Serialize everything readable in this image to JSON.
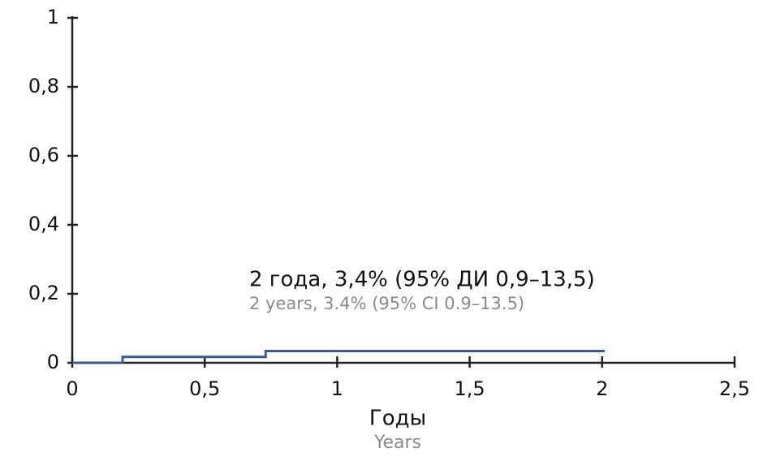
{
  "chart_data": {
    "type": "line",
    "step": "post",
    "x": [
      0,
      0.19,
      0.19,
      0.73,
      0.73,
      2.01
    ],
    "series": [
      {
        "color": "#3b5a8e",
        "values": [
          0,
          0,
          0.017,
          0.017,
          0.034,
          0.034
        ]
      }
    ],
    "xlim": [
      0,
      2.5
    ],
    "xticks": [
      0,
      {
        "value": 0.5,
        "label": "0,5"
      },
      1,
      {
        "value": 1.5,
        "label": "1,5"
      },
      2,
      {
        "value": 2.5,
        "label": "2,5"
      }
    ],
    "ylim": [
      0,
      1
    ],
    "yticks": [
      0,
      {
        "value": 0.2,
        "label": "0,2"
      },
      {
        "value": 0.4,
        "label": "0,4"
      },
      {
        "value": 0.6,
        "label": "0,6"
      },
      {
        "value": 0.8,
        "label": "0,8"
      },
      1
    ],
    "xlabel": "Годы",
    "xlabel_en": "Years",
    "annotation": "2 года, 3,4% (95% ДИ 0,9–13,5)",
    "annotation_en": "2 years, 3.4% (95% CI 0.9–13.5)",
    "secondary_text_color": "#8a8a8a"
  }
}
